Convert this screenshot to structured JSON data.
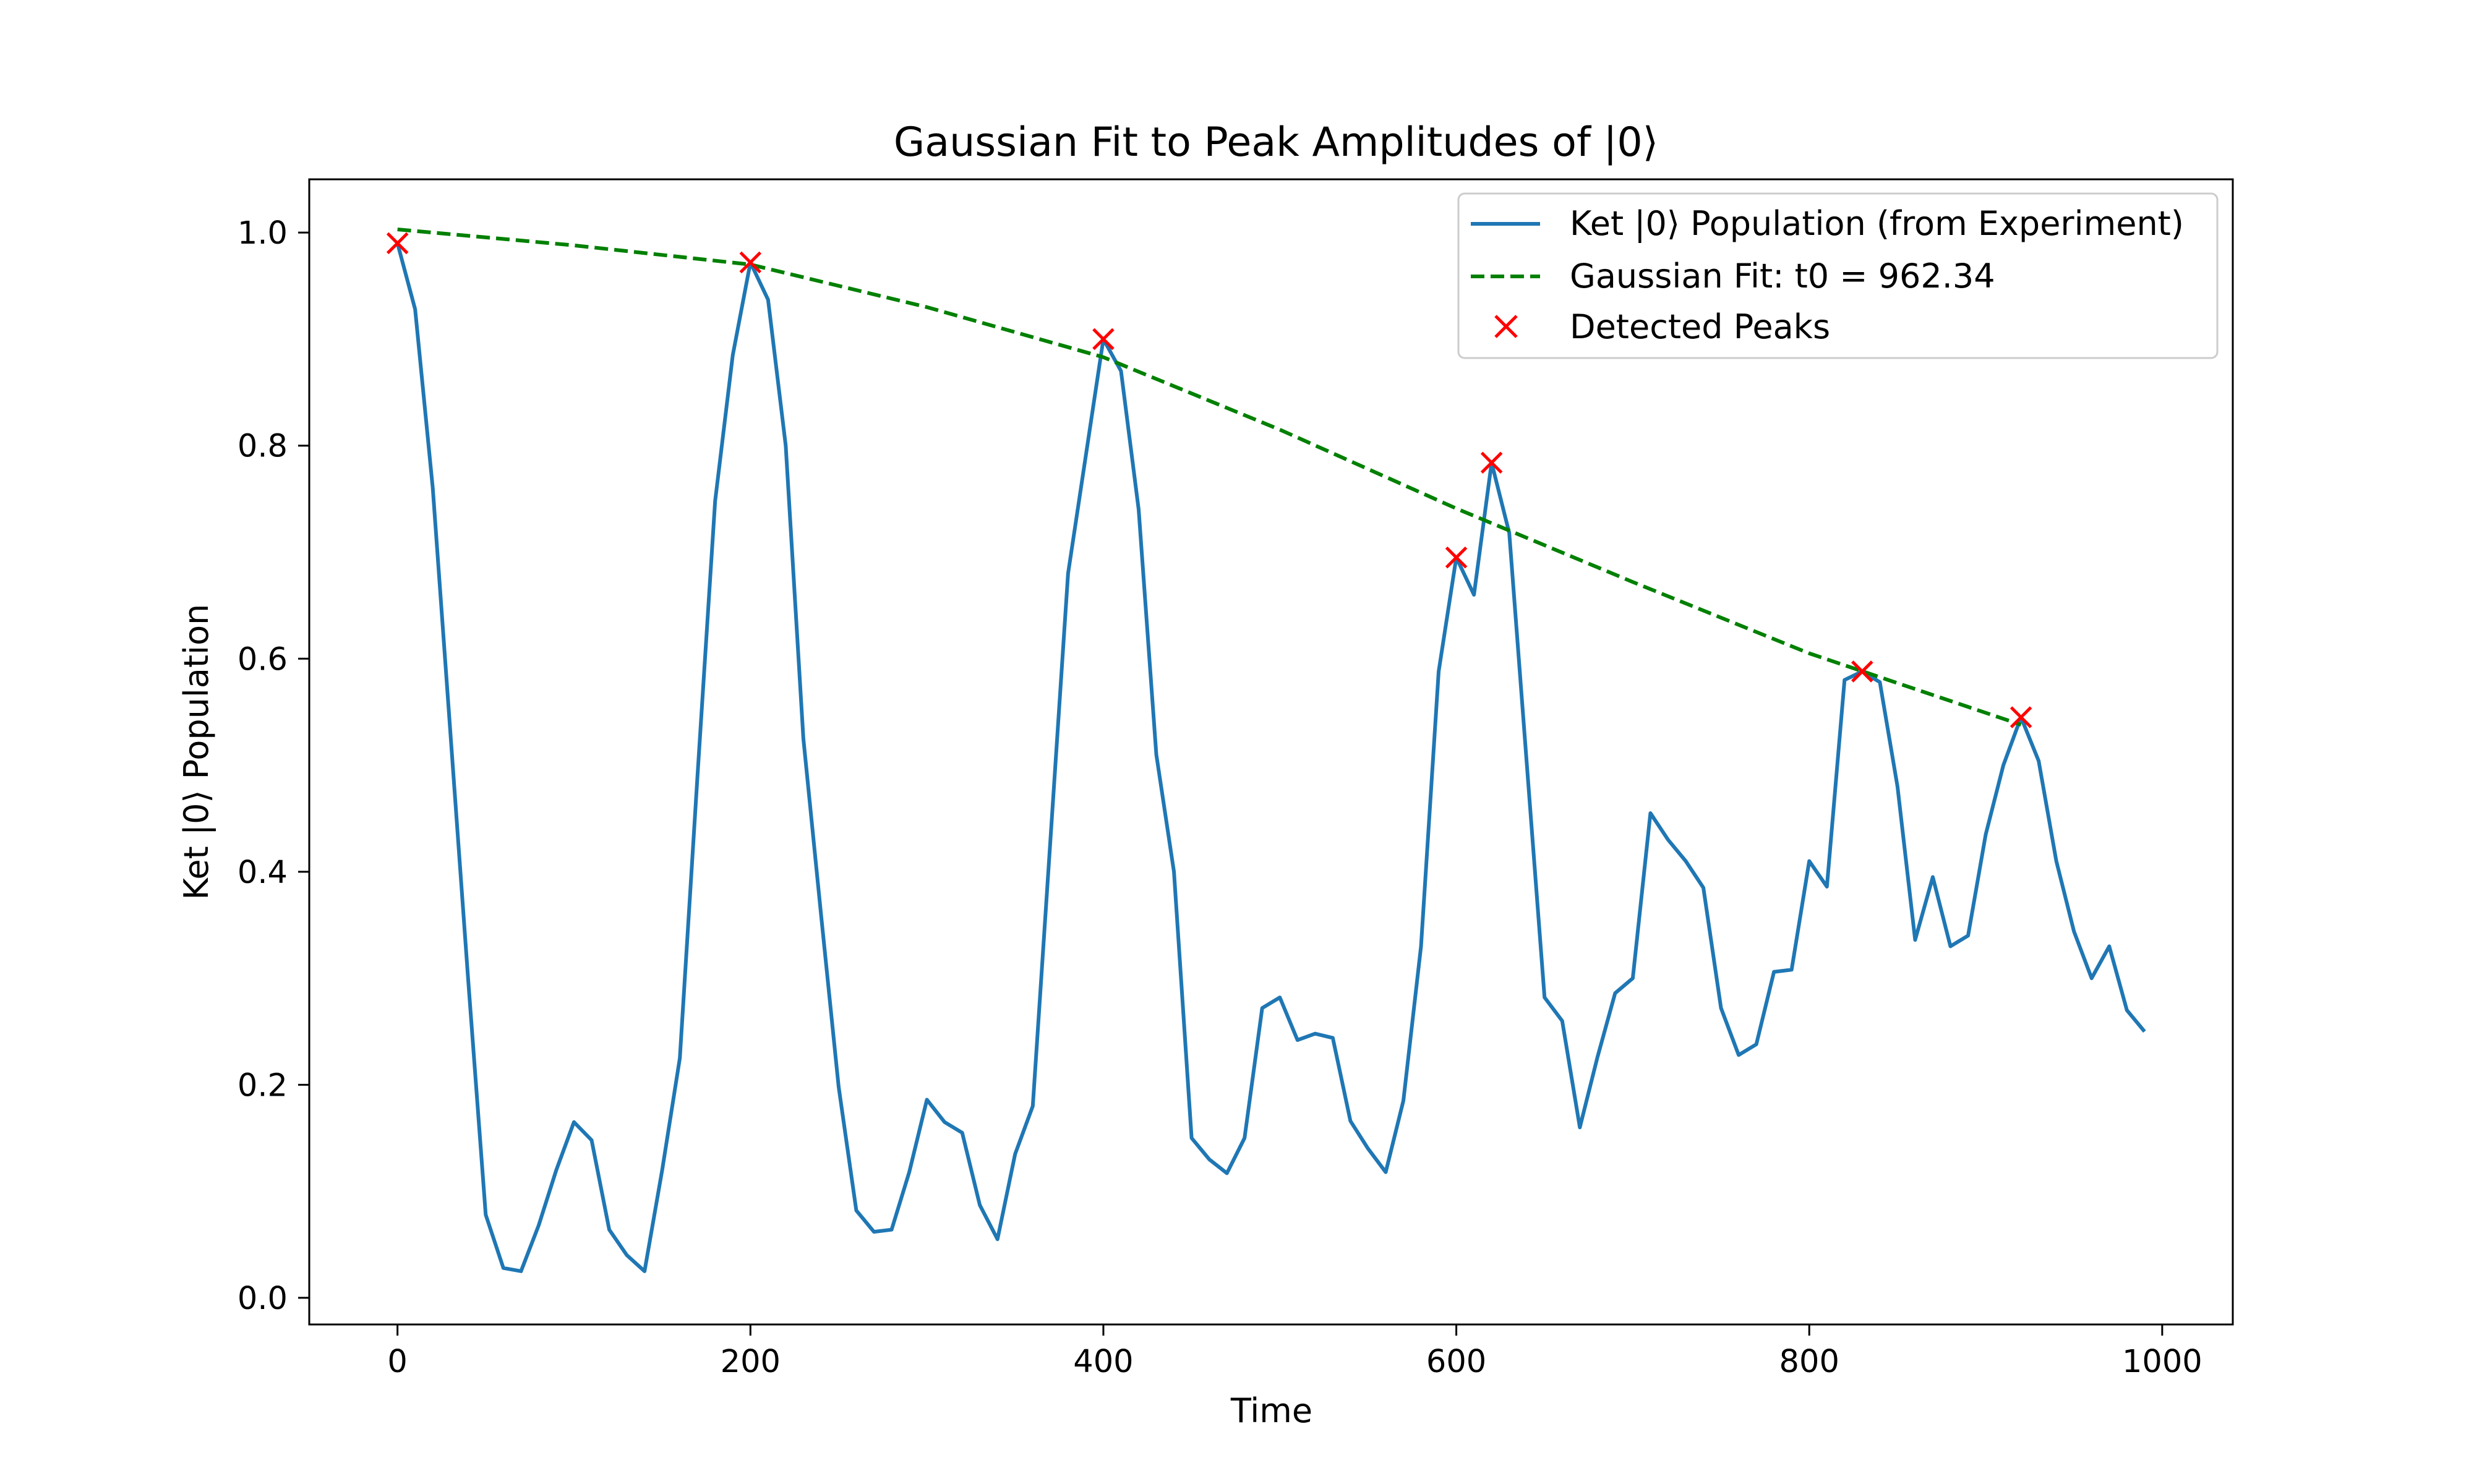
{
  "chart_data": {
    "type": "line",
    "title": "Gaussian Fit to Peak Amplitudes of |0⟩",
    "xlabel": "Time",
    "ylabel": "Ket |0⟩ Population",
    "xlim": [
      -50,
      1040
    ],
    "ylim": [
      -0.025,
      1.05
    ],
    "xticks": [
      0,
      200,
      400,
      600,
      800,
      1000
    ],
    "yticks": [
      0.0,
      0.2,
      0.4,
      0.6,
      0.8,
      1.0
    ],
    "xtick_labels": [
      "0",
      "200",
      "400",
      "600",
      "800",
      "1000"
    ],
    "ytick_labels": [
      "0.0",
      "0.2",
      "0.4",
      "0.6",
      "0.8",
      "1.0"
    ],
    "grid": false,
    "legend_position": "top-right",
    "series": [
      {
        "name": "Ket |0⟩ Population (from Experiment)",
        "kind": "line",
        "color": "#1f77b4",
        "x": [
          0,
          10,
          20,
          30,
          40,
          50,
          60,
          70,
          80,
          90,
          100,
          110,
          120,
          130,
          140,
          150,
          160,
          170,
          180,
          190,
          200,
          210,
          220,
          230,
          240,
          250,
          260,
          270,
          280,
          290,
          300,
          310,
          320,
          330,
          340,
          350,
          360,
          370,
          380,
          390,
          400,
          410,
          420,
          430,
          440,
          450,
          460,
          470,
          480,
          490,
          500,
          510,
          520,
          530,
          540,
          550,
          560,
          570,
          580,
          590,
          600,
          610,
          620,
          630,
          640,
          650,
          660,
          670,
          680,
          690,
          700,
          710,
          720,
          730,
          740,
          750,
          760,
          770,
          780,
          790,
          800,
          810,
          820,
          830,
          840,
          850,
          860,
          870,
          880,
          890,
          900,
          910,
          920,
          930,
          940,
          950,
          960,
          970,
          980,
          990
        ],
        "y": [
          0.99,
          0.928,
          0.76,
          0.53,
          0.3,
          0.078,
          0.028,
          0.025,
          0.068,
          0.12,
          0.165,
          0.148,
          0.064,
          0.04,
          0.025,
          0.12,
          0.225,
          0.49,
          0.748,
          0.885,
          0.972,
          0.937,
          0.8,
          0.525,
          0.36,
          0.198,
          0.082,
          0.062,
          0.064,
          0.118,
          0.186,
          0.165,
          0.155,
          0.087,
          0.055,
          0.135,
          0.18,
          0.43,
          0.68,
          0.79,
          0.9,
          0.87,
          0.74,
          0.51,
          0.4,
          0.15,
          0.13,
          0.117,
          0.15,
          0.272,
          0.282,
          0.242,
          0.248,
          0.244,
          0.166,
          0.14,
          0.118,
          0.185,
          0.33,
          0.588,
          0.695,
          0.66,
          0.784,
          0.718,
          0.5,
          0.282,
          0.26,
          0.16,
          0.226,
          0.286,
          0.3,
          0.455,
          0.43,
          0.41,
          0.385,
          0.272,
          0.228,
          0.238,
          0.306,
          0.308,
          0.41,
          0.386,
          0.58,
          0.588,
          0.578,
          0.48,
          0.336,
          0.395,
          0.33,
          0.34,
          0.435,
          0.5,
          0.545,
          0.504,
          0.41,
          0.344,
          0.3,
          0.33,
          0.27,
          0.25
        ]
      },
      {
        "name": "Gaussian Fit: t0 = 962.34",
        "kind": "dashed-line",
        "color": "#008000",
        "x": [
          0,
          100,
          200,
          300,
          400,
          500,
          600,
          700,
          800,
          920
        ],
        "y": [
          1.003,
          0.988,
          0.97,
          0.93,
          0.883,
          0.815,
          0.741,
          0.672,
          0.605,
          0.538
        ]
      },
      {
        "name": "Detected Peaks",
        "kind": "markers",
        "marker": "x",
        "color": "#ff0000",
        "x": [
          0,
          200,
          400,
          600,
          620,
          830,
          920
        ],
        "y": [
          0.99,
          0.972,
          0.9,
          0.695,
          0.784,
          0.588,
          0.545
        ]
      }
    ]
  }
}
